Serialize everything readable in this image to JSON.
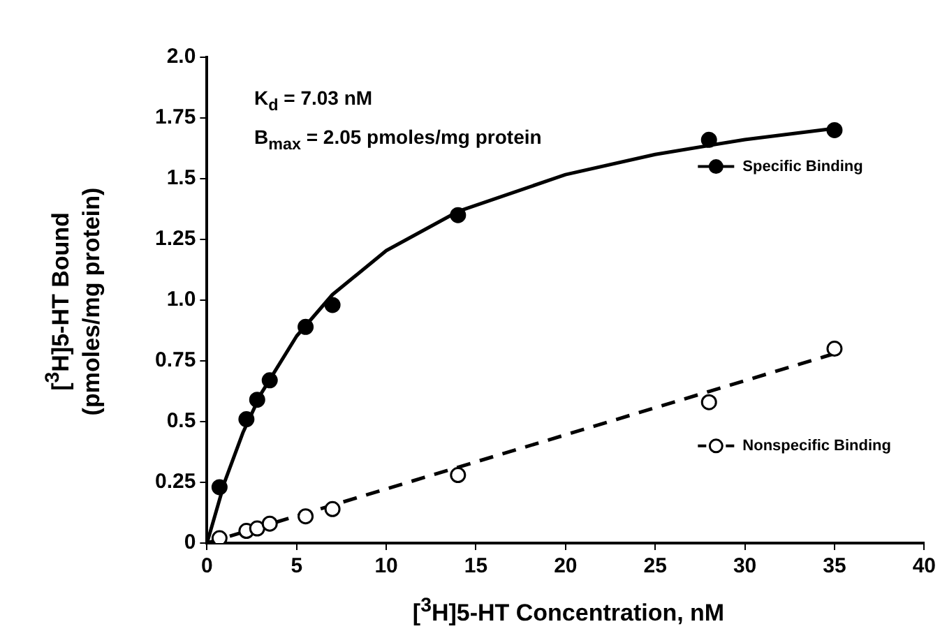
{
  "chart_data": {
    "type": "scatter",
    "xlabel": "[$^{3}$H]5-HT Concentration, nM",
    "ylabel": "[$^{3}$H]5-HT Bound\n(pmoles/mg protein)",
    "annotations": [
      "K$_{d}$ = 7.03 nM",
      "B$_{max}$ = 2.05 pmoles/mg protein"
    ],
    "xlim": [
      0,
      40
    ],
    "xticks": [
      0,
      5,
      10,
      15,
      20,
      25,
      30,
      35,
      40
    ],
    "ylim": [
      0,
      2
    ],
    "yticks": [
      0,
      0.25,
      0.5,
      0.75,
      {
        "value": 1,
        "label": "1.0"
      },
      1.25,
      1.5,
      1.75,
      {
        "value": 2,
        "label": "2.0"
      }
    ],
    "grid": false,
    "legend": "right",
    "series": [
      {
        "name": "Specific Binding",
        "marker": "circle",
        "color": "#000000",
        "x": [
          0.7,
          2.2,
          2.8,
          3.5,
          5.5,
          7.0,
          14,
          28,
          35
        ],
        "values": [
          0.23,
          0.51,
          0.59,
          0.67,
          0.89,
          0.98,
          1.35,
          1.66,
          1.7
        ]
      },
      {
        "name": "Nonspecific Binding",
        "marker": "circle",
        "color": "#000000",
        "x": [
          0.7,
          2.2,
          2.8,
          3.5,
          5.5,
          7.0,
          14,
          28,
          35
        ],
        "values": [
          0.02,
          0.05,
          0.06,
          0.08,
          0.11,
          0.14,
          0.28,
          0.58,
          0.8
        ]
      },
      {
        "type": "line",
        "marker": "none",
        "line_style": "solid",
        "color": "#000000",
        "x": [
          0,
          1,
          2,
          3,
          5,
          7,
          10,
          14,
          20,
          25,
          30,
          35
        ],
        "values": [
          0,
          0.255,
          0.454,
          0.613,
          0.852,
          1.023,
          1.204,
          1.365,
          1.517,
          1.6,
          1.661,
          1.707
        ]
      },
      {
        "type": "line",
        "marker": "none",
        "line_style": "dashed",
        "color": "#000000",
        "x": [
          0,
          35
        ],
        "values": [
          0,
          0.78
        ]
      }
    ]
  }
}
